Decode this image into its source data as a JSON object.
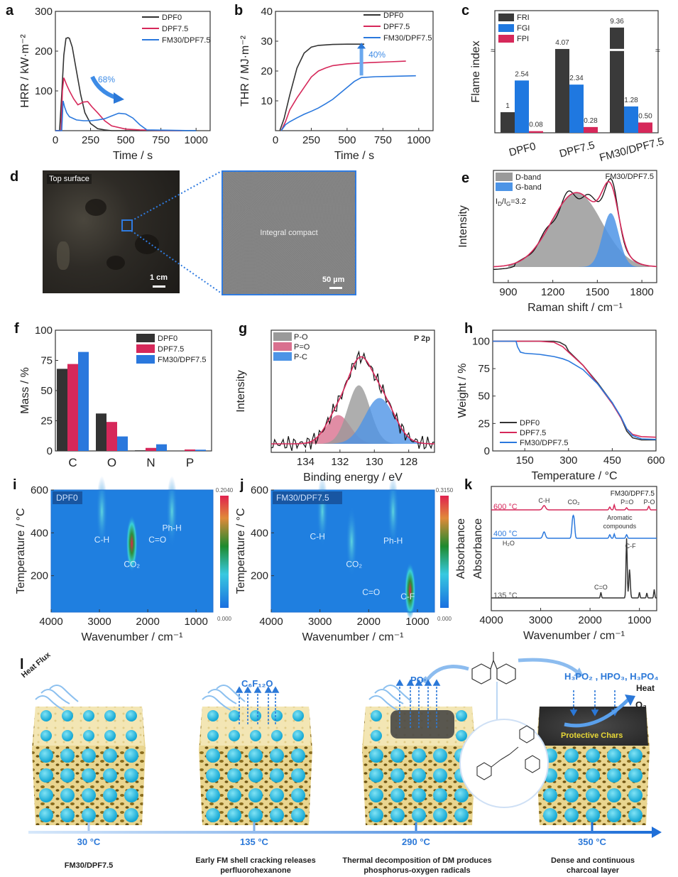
{
  "panels": {
    "a": "a",
    "b": "b",
    "c": "c",
    "d": "d",
    "e": "e",
    "f": "f",
    "g": "g",
    "h": "h",
    "i": "i",
    "j": "j",
    "k": "k",
    "l": "l"
  },
  "colors": {
    "DPF0": "#333333",
    "DPF7.5": "#d6285a",
    "FM30/DPF7.5": "#2a78dd",
    "accent": "#2b78d8"
  },
  "chart_data": [
    {
      "id": "a",
      "type": "line",
      "title": "",
      "xlabel": "Time / s",
      "ylabel": "HRR / kW·m⁻²",
      "xlim": [
        0,
        1100
      ],
      "ylim": [
        0,
        300
      ],
      "xticks": [
        0,
        250,
        500,
        750,
        1000
      ],
      "yticks": [
        100,
        200,
        300
      ],
      "xtick_labels": [
        "0",
        "250",
        "500",
        "750",
        "1000"
      ],
      "ytick_labels": [
        "100",
        "200",
        "300"
      ],
      "legend": [
        "DPF0",
        "DPF7.5",
        "FM30/DPF7.5"
      ],
      "legend_position": "top-right",
      "annotation": "68%",
      "series": [
        {
          "name": "DPF0",
          "x": [
            0,
            30,
            45,
            60,
            75,
            90,
            100,
            120,
            150,
            180,
            210,
            250,
            300,
            350,
            400,
            500,
            1000
          ],
          "y": [
            0,
            0,
            90,
            190,
            232,
            234,
            232,
            210,
            150,
            90,
            45,
            18,
            5,
            2,
            0,
            0,
            0
          ]
        },
        {
          "name": "DPF7.5",
          "x": [
            0,
            40,
            50,
            60,
            80,
            100,
            130,
            160,
            200,
            230,
            260,
            300,
            350,
            400,
            500,
            600,
            700,
            900
          ],
          "y": [
            0,
            0,
            100,
            133,
            115,
            100,
            80,
            65,
            72,
            73,
            60,
            45,
            25,
            12,
            4,
            2,
            1,
            0
          ]
        },
        {
          "name": "FM30/DPF7.5",
          "x": [
            0,
            45,
            55,
            65,
            80,
            100,
            150,
            200,
            250,
            300,
            350,
            400,
            450,
            500,
            550,
            600,
            650,
            1000
          ],
          "y": [
            0,
            0,
            75,
            60,
            45,
            35,
            27,
            25,
            25,
            27,
            30,
            37,
            44,
            42,
            32,
            15,
            2,
            0
          ]
        }
      ]
    },
    {
      "id": "b",
      "type": "line",
      "xlabel": "Time / s",
      "ylabel": "THR / MJ·m⁻²",
      "xlim": [
        0,
        1100
      ],
      "ylim": [
        0,
        40
      ],
      "xticks": [
        0,
        250,
        500,
        750,
        1000
      ],
      "yticks": [
        10,
        20,
        30,
        40
      ],
      "xtick_labels": [
        "0",
        "250",
        "500",
        "750",
        "1000"
      ],
      "ytick_labels": [
        "10",
        "20",
        "30",
        "40"
      ],
      "legend": [
        "DPF0",
        "DPF7.5",
        "FM30/DPF7.5"
      ],
      "legend_position": "top-right",
      "annotation": "40%",
      "series": [
        {
          "name": "DPF0",
          "x": [
            30,
            60,
            100,
            150,
            200,
            250,
            300,
            400,
            500,
            620
          ],
          "y": [
            0,
            4,
            12,
            21,
            26,
            28,
            28.6,
            28.9,
            29,
            29
          ]
        },
        {
          "name": "DPF7.5",
          "x": [
            40,
            70,
            100,
            150,
            200,
            250,
            300,
            350,
            400,
            500,
            600,
            700,
            800,
            910
          ],
          "y": [
            0,
            3,
            7,
            11,
            14.5,
            18,
            20,
            21,
            21.8,
            22.4,
            22.7,
            22.9,
            23.1,
            23.3
          ]
        },
        {
          "name": "FM30/DPF7.5",
          "x": [
            40,
            70,
            100,
            150,
            200,
            250,
            300,
            350,
            400,
            450,
            500,
            550,
            600,
            700,
            800,
            980
          ],
          "y": [
            0,
            2,
            3,
            4.3,
            5.5,
            6.5,
            7.6,
            9,
            10.5,
            12.5,
            14.5,
            16.5,
            17.8,
            18.1,
            18.2,
            18.4
          ]
        }
      ]
    },
    {
      "id": "c",
      "type": "bar",
      "ylabel": "Flame index",
      "categories": [
        "DPF0",
        "DPF7.5",
        "FM30/DPF7.5"
      ],
      "axis_break": true,
      "legend": [
        "FRI",
        "FGI",
        "FPI"
      ],
      "legend_position": "top-left",
      "series": [
        {
          "name": "FRI",
          "values": [
            1,
            4.07,
            9.36
          ],
          "labels": [
            "1",
            "4.07",
            "9.36"
          ]
        },
        {
          "name": "FGI",
          "values": [
            2.54,
            2.34,
            1.28
          ],
          "labels": [
            "2.54",
            "2.34",
            "1.28"
          ]
        },
        {
          "name": "FPI",
          "values": [
            0.08,
            0.28,
            0.5
          ],
          "labels": [
            "0.08",
            "0.28",
            "0.50"
          ]
        }
      ]
    },
    {
      "id": "e",
      "type": "area",
      "xlabel": "Raman shift / cm⁻¹",
      "ylabel": "Intensity",
      "xlim": [
        800,
        1900
      ],
      "xticks": [
        900,
        1200,
        1500,
        1800
      ],
      "xtick_labels": [
        "900",
        "1200",
        "1500",
        "1800"
      ],
      "legend": [
        "D-band",
        "G-band"
      ],
      "legend_position": "top-left",
      "sample_label": "FM30/DPF7.5",
      "ratio_label": "I_D/I_G=3.2",
      "series": [
        {
          "name": "D-band",
          "center": 1360,
          "height": 0.8,
          "width": 170
        },
        {
          "name": "G-band",
          "center": 1590,
          "height": 0.58,
          "width": 55
        },
        {
          "name": "fit",
          "type": "sum"
        },
        {
          "name": "raw",
          "type": "line"
        }
      ]
    },
    {
      "id": "f",
      "type": "bar",
      "ylabel": "Mass / %",
      "ylim": [
        0,
        100
      ],
      "yticks": [
        0,
        25,
        50,
        75,
        100
      ],
      "ytick_labels": [
        "0",
        "25",
        "50",
        "75",
        "100"
      ],
      "categories": [
        "C",
        "O",
        "N",
        "P"
      ],
      "legend": [
        "DPF0",
        "DPF7.5",
        "FM30/DPF7.5"
      ],
      "legend_position": "top-right",
      "series": [
        {
          "name": "DPF0",
          "values": [
            68,
            31,
            0.5,
            0
          ]
        },
        {
          "name": "DPF7.5",
          "values": [
            72,
            24,
            2.5,
            1.2
          ]
        },
        {
          "name": "FM30/DPF7.5",
          "values": [
            82,
            12,
            5.5,
            1
          ]
        }
      ]
    },
    {
      "id": "g",
      "type": "area",
      "xlabel": "Binding energy / eV",
      "ylabel": "Intensity",
      "xlim": [
        136,
        126.5
      ],
      "xticks": [
        134,
        132,
        130,
        128
      ],
      "xtick_labels": [
        "134",
        "132",
        "130",
        "128"
      ],
      "legend": [
        "P-O",
        "P=O",
        "P-C"
      ],
      "legend_position": "top-left",
      "sample_label": "P 2p",
      "series": [
        {
          "name": "P-O",
          "center": 130.9,
          "height": 0.55,
          "width": 0.65
        },
        {
          "name": "P=O",
          "center": 132.1,
          "height": 0.27,
          "width": 0.7
        },
        {
          "name": "P-C",
          "center": 129.7,
          "height": 0.43,
          "width": 0.85
        }
      ]
    },
    {
      "id": "h",
      "type": "line",
      "xlabel": "Temperature / °C",
      "ylabel": "Weight / %",
      "xlim": [
        40,
        600
      ],
      "ylim": [
        0,
        110
      ],
      "xticks": [
        150,
        300,
        450,
        600
      ],
      "xtick_labels": [
        "150",
        "300",
        "450",
        "600"
      ],
      "yticks": [
        0,
        25,
        50,
        75,
        100
      ],
      "ytick_labels": [
        "0",
        "25",
        "50",
        "75",
        "100"
      ],
      "legend": [
        "DPF0",
        "DPF7.5",
        "FM30/DPF7.5"
      ],
      "legend_position": "bottom-left",
      "series": [
        {
          "name": "DPF0",
          "x": [
            40,
            250,
            270,
            290,
            300,
            350,
            400,
            450,
            480,
            500,
            520,
            550,
            600
          ],
          "y": [
            100,
            100,
            99,
            96,
            91,
            78,
            62,
            44,
            30,
            18,
            12,
            10,
            10
          ]
        },
        {
          "name": "DPF7.5",
          "x": [
            40,
            200,
            250,
            280,
            300,
            350,
            400,
            450,
            480,
            500,
            520,
            550,
            600
          ],
          "y": [
            100,
            100,
            99,
            95,
            90,
            78,
            61,
            43,
            30,
            20,
            15,
            13,
            12.5
          ]
        },
        {
          "name": "FM30/DPF7.5",
          "x": [
            40,
            120,
            125,
            135,
            150,
            200,
            250,
            280,
            300,
            350,
            400,
            450,
            480,
            500,
            520,
            550,
            600
          ],
          "y": [
            100,
            100,
            95,
            90,
            89,
            88,
            86,
            84,
            82,
            74,
            61,
            44,
            31,
            20,
            14,
            11,
            10.5
          ]
        }
      ]
    },
    {
      "id": "i",
      "type": "heatmap",
      "xlabel": "Wavenumber / cm⁻¹",
      "ylabel": "Temperature / °C",
      "xlim": [
        4000,
        650
      ],
      "ylim": [
        30,
        600
      ],
      "xticks": [
        4000,
        3000,
        2000,
        1000
      ],
      "xtick_labels": [
        "4000",
        "3000",
        "2000",
        "1000"
      ],
      "yticks": [
        200,
        400,
        600
      ],
      "ytick_labels": [
        "200",
        "400",
        "600"
      ],
      "sample_label": "DPF0",
      "colorbar_max": "0.2040",
      "colorbar_min": "0.000",
      "annotations": [
        "C-H",
        "CO₂",
        "C=O",
        "Ph-H"
      ],
      "hotspots": [
        {
          "x": 2330,
          "y": 350,
          "intensity": 1.0
        },
        {
          "x": 2950,
          "y": 500,
          "intensity": 0.3
        },
        {
          "x": 1500,
          "y": 500,
          "intensity": 0.2
        }
      ]
    },
    {
      "id": "j",
      "type": "heatmap",
      "xlabel": "Wavenumber / cm⁻¹",
      "ylabel": "Temperature / °C",
      "xlim": [
        4000,
        650
      ],
      "ylim": [
        30,
        600
      ],
      "xticks": [
        4000,
        3000,
        2000,
        1000
      ],
      "xtick_labels": [
        "4000",
        "3000",
        "2000",
        "1000"
      ],
      "yticks": [
        200,
        400,
        600
      ],
      "ytick_labels": [
        "200",
        "400",
        "600"
      ],
      "sample_label": "FM30/DPF7.5",
      "colorbar_max": "0.3150",
      "colorbar_min": "0.000",
      "annotations": [
        "C-H",
        "CO₂",
        "Ph-H",
        "C=O",
        "C-F"
      ],
      "hotspots": [
        {
          "x": 1150,
          "y": 130,
          "intensity": 1.0
        },
        {
          "x": 2350,
          "y": 360,
          "intensity": 0.5
        },
        {
          "x": 2950,
          "y": 500,
          "intensity": 0.25
        },
        {
          "x": 1500,
          "y": 500,
          "intensity": 0.2
        }
      ]
    },
    {
      "id": "k",
      "type": "line",
      "xlabel": "Wavenumber / cm⁻¹",
      "ylabel": "Absorbance",
      "xlim": [
        4000,
        650
      ],
      "xticks": [
        4000,
        3000,
        2000,
        1000
      ],
      "xtick_labels": [
        "4000",
        "3000",
        "2000",
        "1000"
      ],
      "sample_label": "FM30/DPF7.5",
      "series": [
        {
          "name": "600 °C",
          "color": "#d6285a"
        },
        {
          "name": "400 °C",
          "color": "#2a78dd"
        },
        {
          "name": "135 °C",
          "color": "#333333"
        }
      ],
      "annotations": [
        "C-H",
        "CO₂",
        "P=O",
        "P-O",
        "Aromatic compounds",
        "H₂O",
        "C-F",
        "C=O"
      ]
    }
  ],
  "panel_d": {
    "left_label": "Top surface",
    "left_scale": "1 cm",
    "right_label": "Integral compact",
    "right_scale": "50 µm"
  },
  "panel_l": {
    "heat_flux": "Heat Flux",
    "gas1": "C₆F₁₂O",
    "radical": "PO·",
    "acids": "H₃PO₂ , HPO₃, H₃PO₄",
    "heat": "Heat",
    "oxygen": "O₂",
    "char_label": "Protective Chars",
    "stages": [
      {
        "temp": "30 °C",
        "desc": "FM30/DPF7.5"
      },
      {
        "temp": "135 °C",
        "desc": "Early FM shell cracking releases perfluorohexanone"
      },
      {
        "temp": "290 °C",
        "desc": "Thermal decomposition of DM produces phosphorus-oxygen radicals"
      },
      {
        "temp": "350 °C",
        "desc": "Dense and continuous charcoal layer"
      }
    ]
  }
}
